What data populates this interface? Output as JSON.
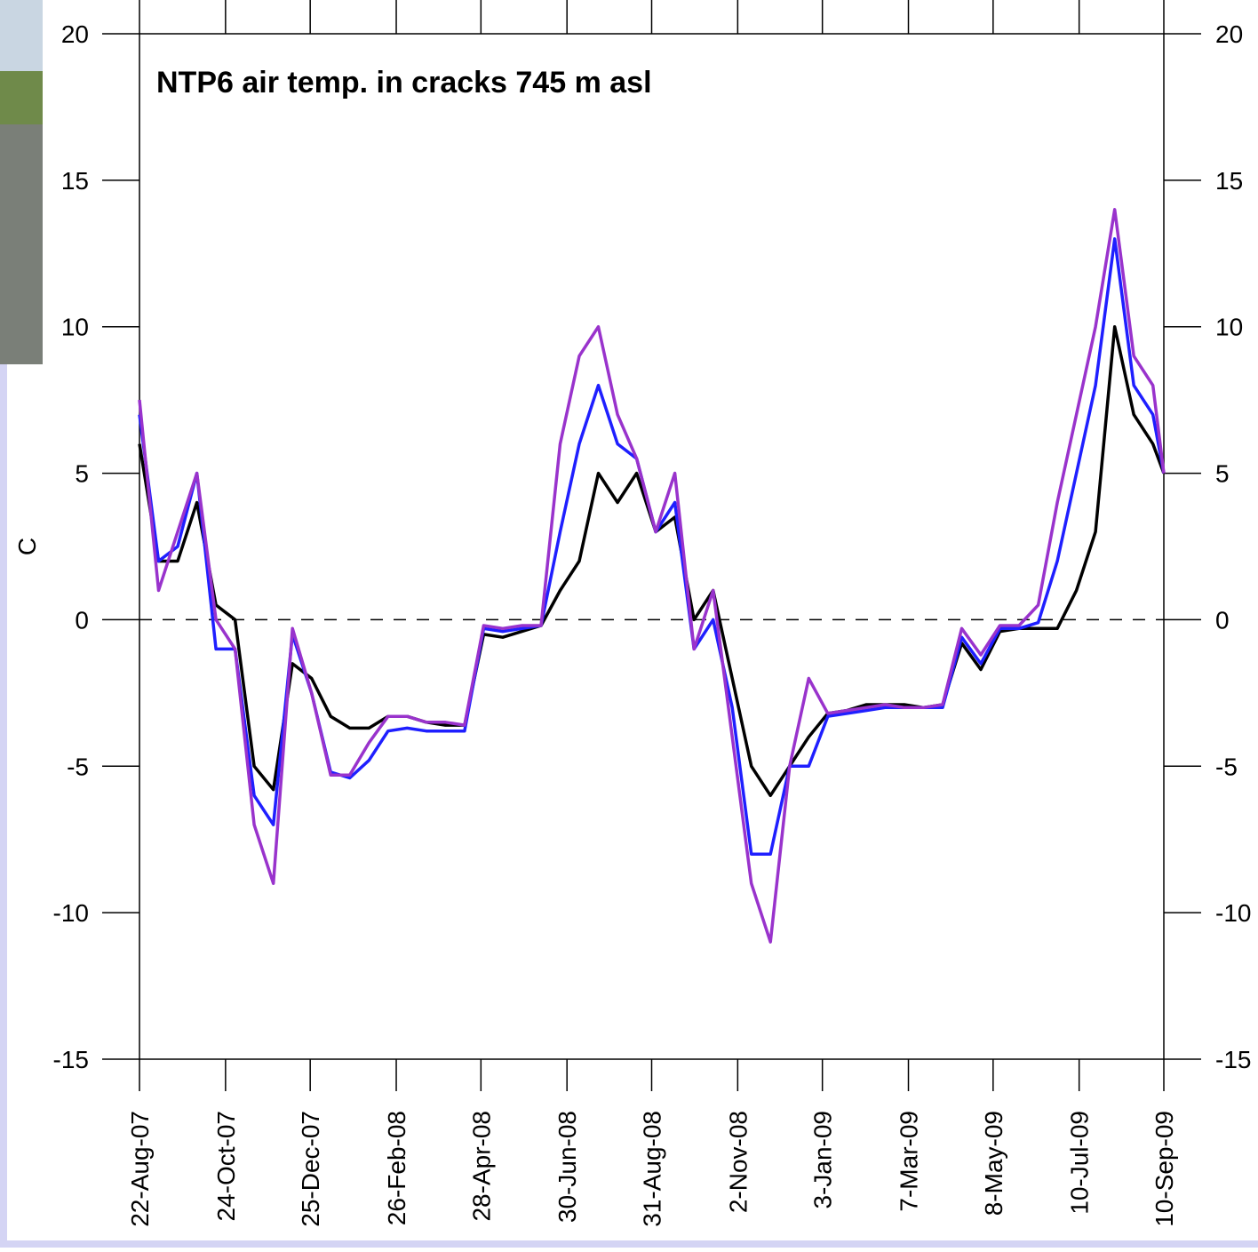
{
  "chart_data": {
    "type": "line",
    "title": "NTP6 air temp. in cracks 745 m asl",
    "y_label": "C",
    "x": [
      "2007-08-22",
      "2007-09-05",
      "2007-09-19",
      "2007-10-03",
      "2007-10-17",
      "2007-10-31",
      "2007-11-14",
      "2007-11-28",
      "2007-12-12",
      "2007-12-26",
      "2008-01-09",
      "2008-01-23",
      "2008-02-06",
      "2008-02-20",
      "2008-03-05",
      "2008-03-19",
      "2008-04-02",
      "2008-04-16",
      "2008-04-30",
      "2008-05-14",
      "2008-05-28",
      "2008-06-11",
      "2008-06-25",
      "2008-07-09",
      "2008-07-23",
      "2008-08-06",
      "2008-08-20",
      "2008-09-03",
      "2008-09-17",
      "2008-10-01",
      "2008-10-15",
      "2008-10-29",
      "2008-11-12",
      "2008-11-26",
      "2008-12-10",
      "2008-12-24",
      "2009-01-07",
      "2009-01-21",
      "2009-02-04",
      "2009-02-18",
      "2009-03-04",
      "2009-03-18",
      "2009-04-01",
      "2009-04-15",
      "2009-04-29",
      "2009-05-13",
      "2009-05-27",
      "2009-06-10",
      "2009-06-24",
      "2009-07-08",
      "2009-07-22",
      "2009-08-05",
      "2009-08-19",
      "2009-09-02",
      "2009-09-10"
    ],
    "series": [
      {
        "color": "#000000",
        "values": [
          6,
          2,
          2,
          4,
          0.5,
          0,
          -5,
          -5.8,
          -1.5,
          -2,
          -3.3,
          -3.7,
          -3.7,
          -3.3,
          -3.3,
          -3.5,
          -3.6,
          -3.6,
          -0.5,
          -0.6,
          -0.4,
          -0.2,
          1,
          2,
          5,
          4,
          5,
          3,
          3.5,
          0,
          1,
          -2,
          -5,
          -6,
          -5,
          -4,
          -3.2,
          -3.1,
          -2.9,
          -2.9,
          -2.9,
          -3,
          -2.9,
          -0.8,
          -1.7,
          -0.4,
          -0.3,
          -0.3,
          -0.3,
          1,
          3,
          10,
          7,
          6,
          5
        ]
      },
      {
        "color": "#1f1fff",
        "values": [
          7,
          2,
          2.5,
          5,
          -1,
          -1,
          -6,
          -7,
          -0.5,
          -2.5,
          -5.2,
          -5.4,
          -4.8,
          -3.8,
          -3.7,
          -3.8,
          -3.8,
          -3.8,
          -0.3,
          -0.4,
          -0.3,
          -0.2,
          3,
          6,
          8,
          6,
          5.5,
          3,
          4,
          -1,
          0,
          -3,
          -8,
          -8,
          -5,
          -5,
          -3.3,
          -3.2,
          -3.1,
          -3,
          -3,
          -3,
          -3,
          -0.6,
          -1.5,
          -0.3,
          -0.3,
          -0.1,
          2,
          5,
          8,
          13,
          8,
          7,
          5
        ]
      },
      {
        "color": "#9933cc",
        "values": [
          7.5,
          1,
          3,
          5,
          0,
          -1,
          -7,
          -9,
          -0.3,
          -2.5,
          -5.3,
          -5.3,
          -4.2,
          -3.3,
          -3.3,
          -3.5,
          -3.5,
          -3.6,
          -0.2,
          -0.3,
          -0.2,
          -0.2,
          6,
          9,
          10,
          7,
          5.5,
          3,
          5,
          -1,
          1,
          -4,
          -9,
          -11,
          -5,
          -2,
          -3.2,
          -3.1,
          -3,
          -2.9,
          -3,
          -3,
          -2.9,
          -0.3,
          -1.2,
          -0.2,
          -0.2,
          0.5,
          4,
          7,
          10,
          14,
          9,
          8,
          5
        ]
      }
    ],
    "xlim": [
      "2007-08-22",
      "2009-09-10"
    ],
    "xticks": [
      {
        "value": "2007-08-22",
        "label": "22-Aug-07"
      },
      {
        "value": "2007-10-24",
        "label": "24-Oct-07"
      },
      {
        "value": "2007-12-25",
        "label": "25-Dec-07"
      },
      {
        "value": "2008-02-26",
        "label": "26-Feb-08"
      },
      {
        "value": "2008-04-28",
        "label": "28-Apr-08"
      },
      {
        "value": "2008-06-30",
        "label": "30-Jun-08"
      },
      {
        "value": "2008-08-31",
        "label": "31-Aug-08"
      },
      {
        "value": "2008-11-02",
        "label": "2-Nov-08"
      },
      {
        "value": "2009-01-03",
        "label": "3-Jan-09"
      },
      {
        "value": "2009-03-07",
        "label": "7-Mar-09"
      },
      {
        "value": "2009-05-08",
        "label": "8-May-09"
      },
      {
        "value": "2009-07-10",
        "label": "10-Jul-09"
      },
      {
        "value": "2009-09-10",
        "label": "10-Sep-09"
      }
    ],
    "ylim": [
      -15,
      20
    ],
    "yticks": [
      -15,
      -10,
      -5,
      0,
      5,
      10,
      15,
      20
    ],
    "y2lim": [
      -15,
      20
    ],
    "y2ticks": [
      -15,
      -10,
      -5,
      0,
      5,
      10,
      15,
      20
    ],
    "reference_line": 0
  }
}
